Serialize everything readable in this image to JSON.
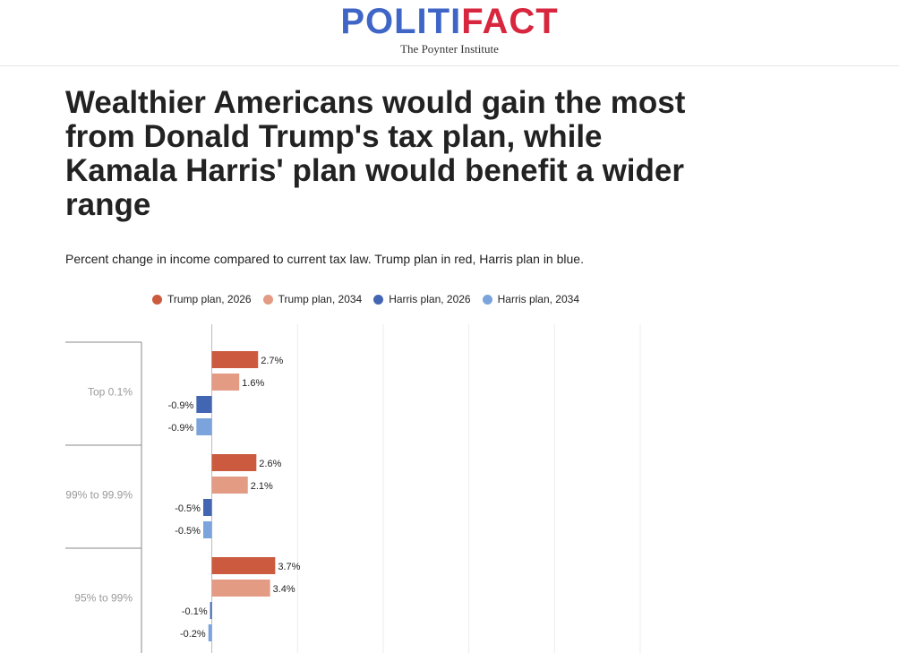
{
  "header": {
    "logo_part1": "POLITI",
    "logo_part2": "FACT",
    "tagline": "The Poynter Institute"
  },
  "title": "Wealthier Americans would gain the most from Donald Trump's tax plan, while Kamala Harris' plan would benefit a wider range",
  "subtitle": "Percent change in income compared to current tax law. Trump plan in red, Harris plan in blue.",
  "colors": {
    "trump_2026": "#cb5a3e",
    "trump_2034": "#e39b84",
    "harris_2026": "#4366b3",
    "harris_2034": "#7ba4dc",
    "logo_blue": "#3f66c7",
    "logo_red": "#d7263d",
    "logo_check": "#f2b705"
  },
  "chart_data": {
    "type": "bar",
    "orientation": "horizontal",
    "categories": [
      "Top 0.1%",
      "99% to 99.9%",
      "95% to 99%"
    ],
    "series": [
      {
        "name": "Trump plan, 2026",
        "color": "#cb5a3e",
        "values": [
          2.7,
          2.6,
          3.7
        ],
        "labels": [
          "2.7%",
          "2.6%",
          "3.7%"
        ]
      },
      {
        "name": "Trump plan, 2034",
        "color": "#e39b84",
        "values": [
          1.6,
          2.1,
          3.4
        ],
        "labels": [
          "1.6%",
          "2.1%",
          "3.4%"
        ]
      },
      {
        "name": "Harris plan, 2026",
        "color": "#4366b3",
        "values": [
          -0.9,
          -0.5,
          -0.1
        ],
        "labels": [
          "-0.9%",
          "-0.5%",
          "-0.1%"
        ]
      },
      {
        "name": "Harris plan, 2034",
        "color": "#7ba4dc",
        "values": [
          -0.9,
          -0.5,
          -0.2
        ],
        "labels": [
          "-0.9%",
          "-0.5%",
          "-0.2%"
        ]
      }
    ],
    "xlim": [
      -4,
      25
    ],
    "grid": true,
    "legend_position": "top"
  }
}
